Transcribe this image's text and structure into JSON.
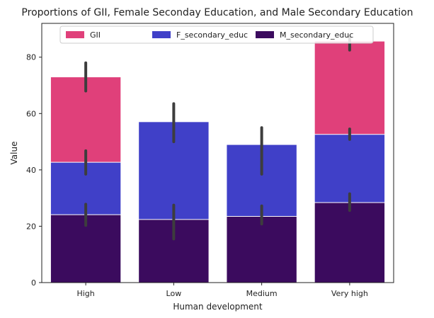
{
  "chart_data": {
    "type": "bar",
    "title": "Proportions of GII, Female Seconday Education, and Male Secondary Education",
    "xlabel": "Human development",
    "ylabel": "Value",
    "categories": [
      "High",
      "Low",
      "Medium",
      "Very high"
    ],
    "ylim": [
      0,
      92
    ],
    "yticks": [
      0,
      20,
      40,
      60,
      80
    ],
    "grid": false,
    "legend_position": "top",
    "series": [
      {
        "name": "GII",
        "color": "#e0407a",
        "values": [
          73.0,
          null,
          null,
          85.7
        ],
        "error_low": [
          68.0,
          null,
          null,
          82.5
        ],
        "error_high": [
          78.0,
          null,
          null,
          87.5
        ]
      },
      {
        "name": "F_secondary_educ",
        "color": "#4040c8",
        "values": [
          42.7,
          57.1,
          49.0,
          52.6
        ],
        "error_low": [
          38.5,
          50.0,
          38.5,
          50.8
        ],
        "error_high": [
          46.8,
          63.5,
          55.0,
          54.5
        ]
      },
      {
        "name": "M_secondary_educ",
        "color": "#3b0b5e",
        "values": [
          24.1,
          22.4,
          23.5,
          28.4
        ],
        "error_low": [
          20.3,
          15.5,
          20.8,
          25.6
        ],
        "error_high": [
          27.8,
          27.5,
          27.2,
          31.5
        ]
      }
    ]
  }
}
